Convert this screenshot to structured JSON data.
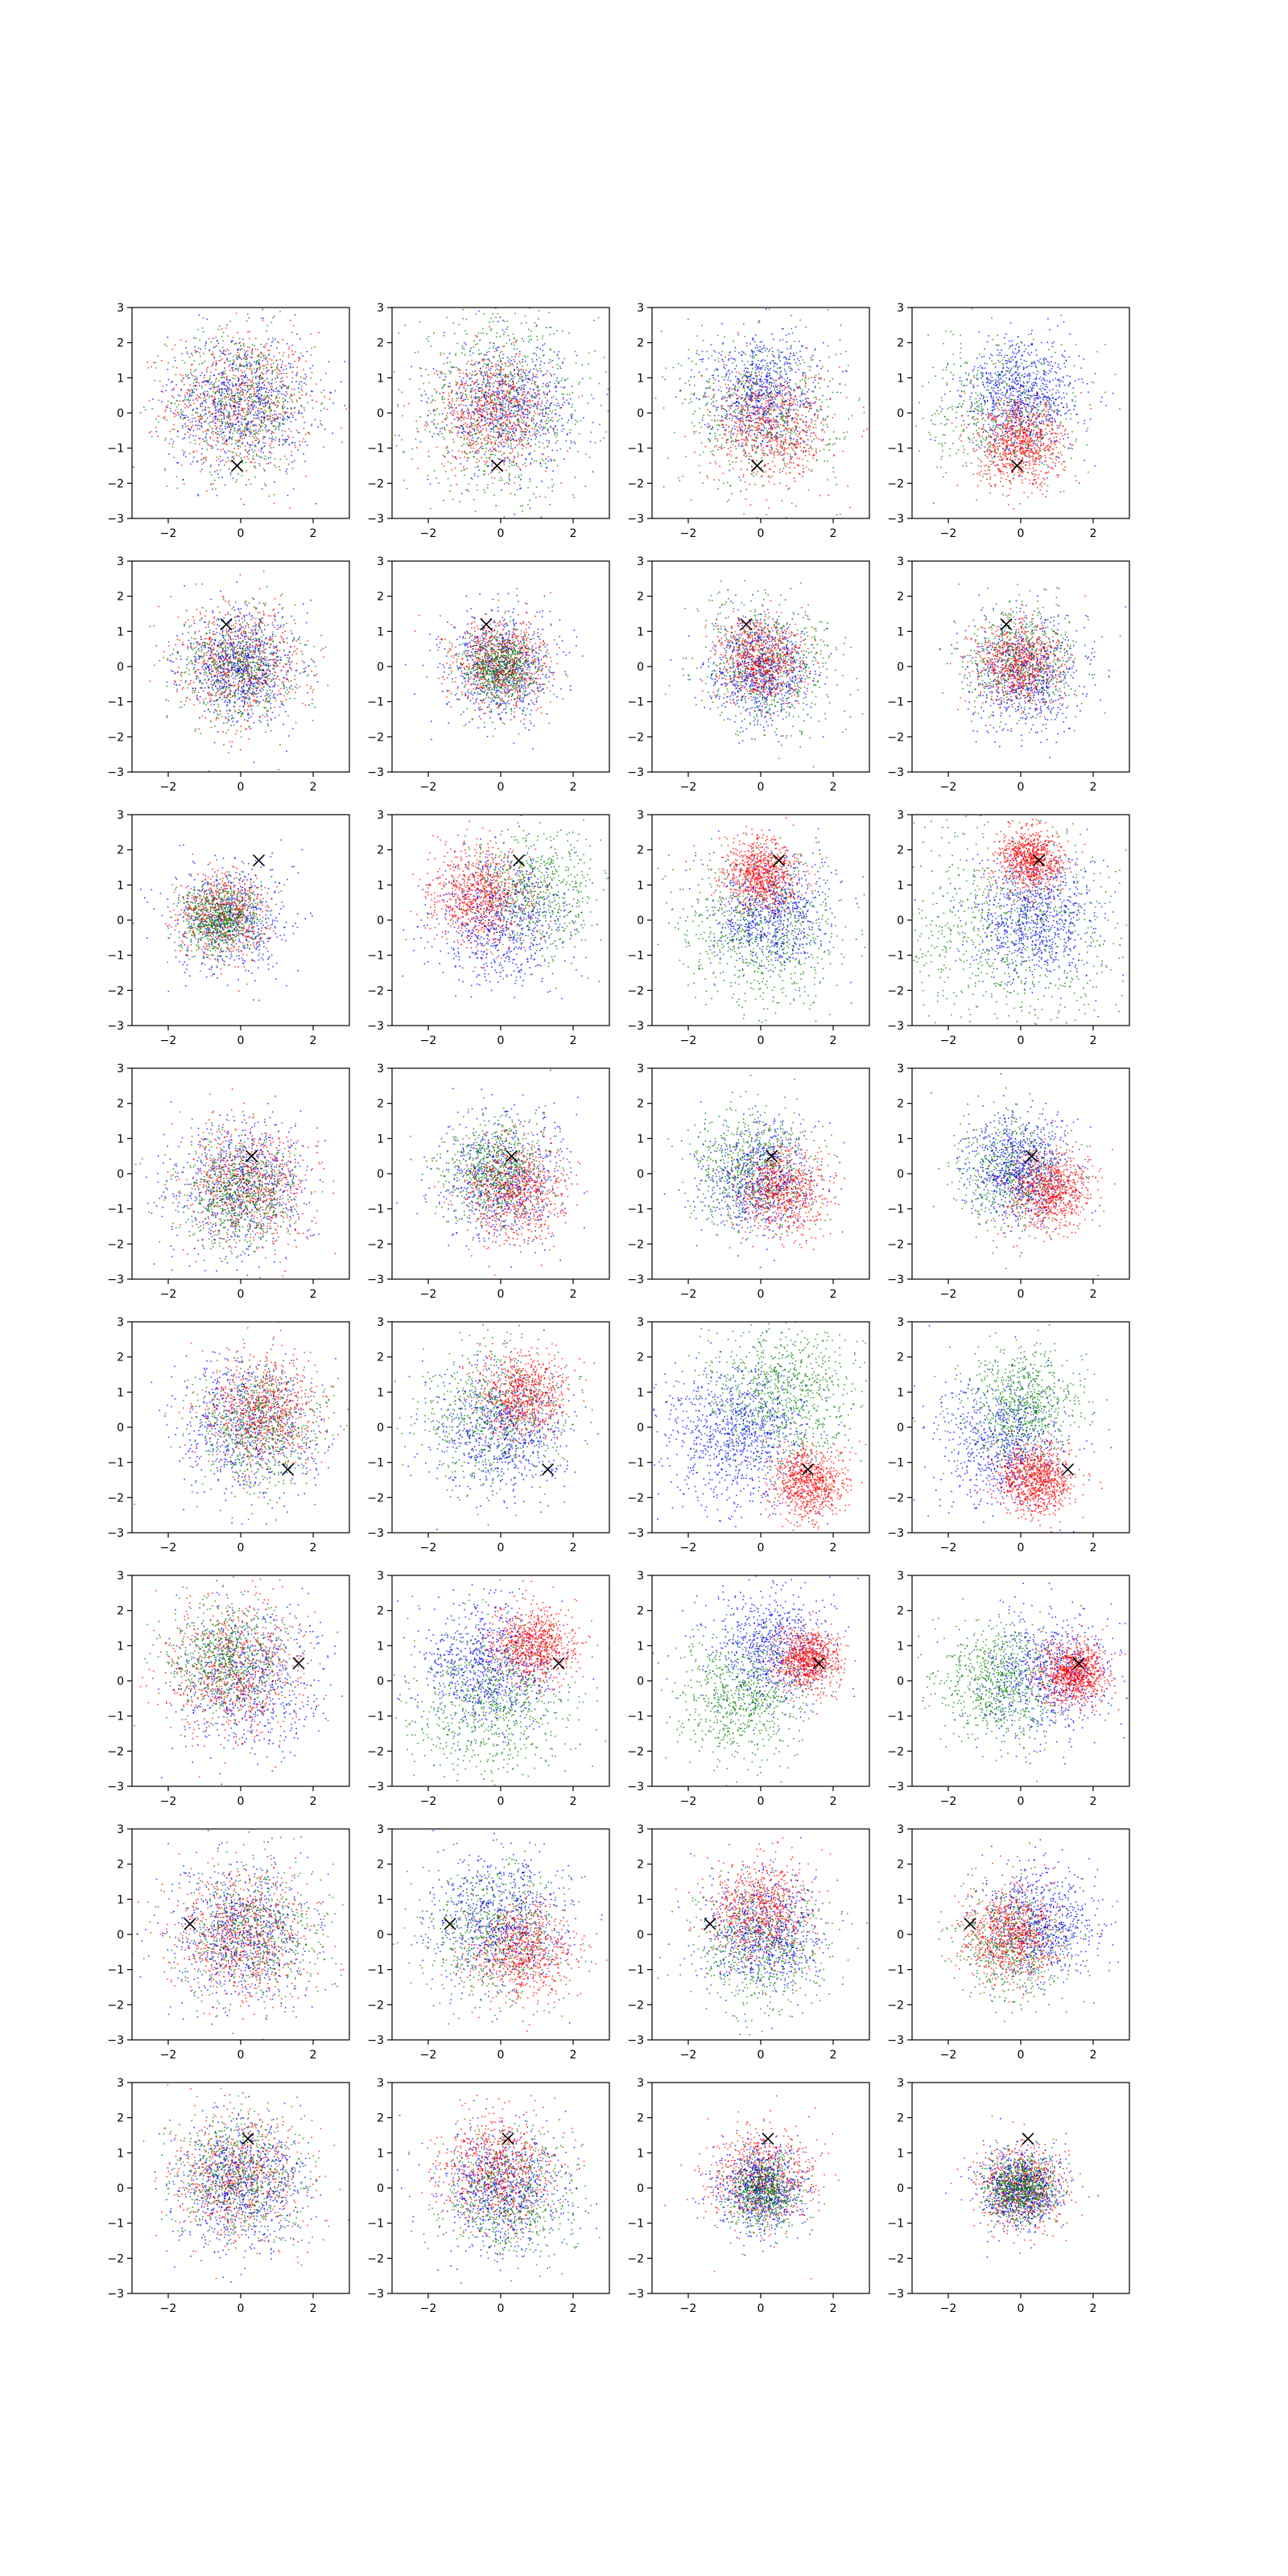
{
  "chart_data": {
    "type": "scatter",
    "layout": {
      "rows": 8,
      "cols": 4
    },
    "xlim": [
      -3,
      3
    ],
    "ylim": [
      -3,
      3
    ],
    "xticks": [
      -2,
      0,
      2
    ],
    "yticks": [
      -3,
      -2,
      -1,
      0,
      1,
      2,
      3
    ],
    "xtick_labels": [
      "−2",
      "0",
      "2"
    ],
    "ytick_labels": [
      "−3",
      "−2",
      "−1",
      "0",
      "1",
      "2",
      "3"
    ],
    "grid": false,
    "legend": "none",
    "colors": {
      "red": "#ff0000",
      "green": "#008000",
      "blue": "#0000ff",
      "marker": "#000000"
    },
    "marker_symbol": "x",
    "panels": [
      {
        "row": 0,
        "col": 0,
        "marker": [
          -0.1,
          -1.5
        ],
        "clusters": [
          {
            "color": "red",
            "cx": 0.0,
            "cy": 0.3,
            "sd": 1.0,
            "n": 700
          },
          {
            "color": "green",
            "cx": 0.0,
            "cy": 0.3,
            "sd": 1.0,
            "n": 700
          },
          {
            "color": "blue",
            "cx": 0.0,
            "cy": 0.3,
            "sd": 1.0,
            "n": 700
          }
        ]
      },
      {
        "row": 0,
        "col": 1,
        "marker": [
          -0.1,
          -1.5
        ],
        "clusters": [
          {
            "color": "green",
            "cx": 0.0,
            "cy": 0.2,
            "sd": 1.3,
            "n": 900
          },
          {
            "color": "blue",
            "cx": 0.2,
            "cy": 0.2,
            "sd": 0.9,
            "n": 700
          },
          {
            "color": "red",
            "cx": -0.2,
            "cy": 0.0,
            "sd": 0.8,
            "n": 700
          }
        ]
      },
      {
        "row": 0,
        "col": 2,
        "marker": [
          -0.1,
          -1.5
        ],
        "clusters": [
          {
            "color": "green",
            "cx": 0.0,
            "cy": 0.1,
            "sd": 1.1,
            "n": 700
          },
          {
            "color": "blue",
            "cx": 0.0,
            "cy": 0.6,
            "sd": 0.8,
            "n": 700
          },
          {
            "color": "red",
            "cx": 0.3,
            "cy": -0.4,
            "sd": 0.8,
            "n": 700
          }
        ]
      },
      {
        "row": 0,
        "col": 3,
        "marker": [
          -0.1,
          -1.5
        ],
        "clusters": [
          {
            "color": "green",
            "cx": -0.5,
            "cy": 0.0,
            "sd": 1.0,
            "n": 600
          },
          {
            "color": "blue",
            "cx": 0.1,
            "cy": 0.5,
            "sd": 0.8,
            "n": 800
          },
          {
            "color": "red",
            "cx": 0.0,
            "cy": -0.9,
            "sd": 0.6,
            "n": 800
          }
        ]
      },
      {
        "row": 1,
        "col": 0,
        "marker": [
          -0.4,
          1.2
        ],
        "clusters": [
          {
            "color": "red",
            "cx": 0.0,
            "cy": 0.1,
            "sd": 0.8,
            "n": 700
          },
          {
            "color": "green",
            "cx": 0.0,
            "cy": 0.0,
            "sd": 0.8,
            "n": 700
          },
          {
            "color": "blue",
            "cx": 0.0,
            "cy": 0.0,
            "sd": 0.8,
            "n": 700
          }
        ]
      },
      {
        "row": 1,
        "col": 1,
        "marker": [
          -0.4,
          1.2
        ],
        "clusters": [
          {
            "color": "blue",
            "cx": 0.0,
            "cy": 0.0,
            "sd": 0.75,
            "n": 700
          },
          {
            "color": "red",
            "cx": 0.0,
            "cy": 0.1,
            "sd": 0.65,
            "n": 700
          },
          {
            "color": "green",
            "cx": 0.0,
            "cy": -0.1,
            "sd": 0.55,
            "n": 700
          }
        ]
      },
      {
        "row": 1,
        "col": 2,
        "marker": [
          -0.4,
          1.2
        ],
        "clusters": [
          {
            "color": "green",
            "cx": 0.2,
            "cy": 0.0,
            "sd": 0.95,
            "n": 700
          },
          {
            "color": "blue",
            "cx": 0.0,
            "cy": -0.1,
            "sd": 0.7,
            "n": 700
          },
          {
            "color": "red",
            "cx": 0.0,
            "cy": 0.2,
            "sd": 0.6,
            "n": 700
          }
        ]
      },
      {
        "row": 1,
        "col": 3,
        "marker": [
          -0.4,
          1.2
        ],
        "clusters": [
          {
            "color": "blue",
            "cx": 0.2,
            "cy": -0.2,
            "sd": 0.8,
            "n": 700
          },
          {
            "color": "green",
            "cx": 0.0,
            "cy": 0.2,
            "sd": 0.8,
            "n": 600
          },
          {
            "color": "red",
            "cx": -0.1,
            "cy": 0.1,
            "sd": 0.6,
            "n": 700
          }
        ]
      },
      {
        "row": 2,
        "col": 0,
        "marker": [
          0.5,
          1.7
        ],
        "clusters": [
          {
            "color": "blue",
            "cx": -0.3,
            "cy": 0.0,
            "sd": 0.8,
            "n": 600
          },
          {
            "color": "red",
            "cx": -0.5,
            "cy": 0.1,
            "sd": 0.6,
            "n": 600
          },
          {
            "color": "green",
            "cx": -0.6,
            "cy": 0.0,
            "sd": 0.55,
            "n": 700
          }
        ]
      },
      {
        "row": 2,
        "col": 1,
        "marker": [
          0.5,
          1.7
        ],
        "clusters": [
          {
            "color": "green",
            "cx": 0.9,
            "cy": 0.8,
            "sd": 0.9,
            "n": 700
          },
          {
            "color": "blue",
            "cx": 0.0,
            "cy": 0.0,
            "sd": 0.9,
            "n": 700
          },
          {
            "color": "red",
            "cx": -0.6,
            "cy": 0.7,
            "sd": 0.7,
            "n": 800
          }
        ]
      },
      {
        "row": 2,
        "col": 2,
        "marker": [
          0.5,
          1.7
        ],
        "clusters": [
          {
            "color": "green",
            "cx": 0.0,
            "cy": -0.3,
            "sd": 1.1,
            "n": 800
          },
          {
            "color": "blue",
            "cx": 0.3,
            "cy": 0.2,
            "sd": 0.8,
            "n": 700
          },
          {
            "color": "red",
            "cx": 0.0,
            "cy": 1.3,
            "sd": 0.5,
            "n": 800
          }
        ]
      },
      {
        "row": 2,
        "col": 3,
        "marker": [
          0.5,
          1.7
        ],
        "clusters": [
          {
            "color": "green",
            "cx": -0.3,
            "cy": -0.3,
            "sd": 1.6,
            "n": 900
          },
          {
            "color": "blue",
            "cx": 0.4,
            "cy": 0.0,
            "sd": 0.85,
            "n": 800
          },
          {
            "color": "red",
            "cx": 0.3,
            "cy": 1.7,
            "sd": 0.45,
            "n": 800
          }
        ]
      },
      {
        "row": 3,
        "col": 0,
        "marker": [
          0.3,
          0.5
        ],
        "clusters": [
          {
            "color": "blue",
            "cx": 0.0,
            "cy": -0.3,
            "sd": 0.95,
            "n": 700
          },
          {
            "color": "red",
            "cx": 0.2,
            "cy": -0.3,
            "sd": 0.85,
            "n": 700
          },
          {
            "color": "green",
            "cx": 0.0,
            "cy": -0.5,
            "sd": 0.8,
            "n": 700
          }
        ]
      },
      {
        "row": 3,
        "col": 1,
        "marker": [
          0.3,
          0.5
        ],
        "clusters": [
          {
            "color": "blue",
            "cx": 0.0,
            "cy": -0.2,
            "sd": 0.9,
            "n": 700
          },
          {
            "color": "green",
            "cx": -0.1,
            "cy": 0.1,
            "sd": 0.7,
            "n": 700
          },
          {
            "color": "red",
            "cx": 0.4,
            "cy": -0.5,
            "sd": 0.7,
            "n": 700
          }
        ]
      },
      {
        "row": 3,
        "col": 2,
        "marker": [
          0.3,
          0.5
        ],
        "clusters": [
          {
            "color": "green",
            "cx": -0.2,
            "cy": 0.2,
            "sd": 0.8,
            "n": 700
          },
          {
            "color": "blue",
            "cx": 0.0,
            "cy": -0.1,
            "sd": 0.8,
            "n": 700
          },
          {
            "color": "red",
            "cx": 0.6,
            "cy": -0.5,
            "sd": 0.6,
            "n": 700
          }
        ]
      },
      {
        "row": 3,
        "col": 3,
        "marker": [
          0.3,
          0.5
        ],
        "clusters": [
          {
            "color": "green",
            "cx": -0.3,
            "cy": 0.0,
            "sd": 0.8,
            "n": 600
          },
          {
            "color": "blue",
            "cx": 0.0,
            "cy": 0.1,
            "sd": 0.7,
            "n": 800
          },
          {
            "color": "red",
            "cx": 0.8,
            "cy": -0.5,
            "sd": 0.55,
            "n": 800
          }
        ]
      },
      {
        "row": 4,
        "col": 0,
        "marker": [
          1.3,
          -1.2
        ],
        "clusters": [
          {
            "color": "blue",
            "cx": 0.2,
            "cy": 0.0,
            "sd": 1.0,
            "n": 700
          },
          {
            "color": "green",
            "cx": 0.5,
            "cy": 0.0,
            "sd": 0.9,
            "n": 700
          },
          {
            "color": "red",
            "cx": 0.6,
            "cy": 0.4,
            "sd": 0.8,
            "n": 700
          }
        ]
      },
      {
        "row": 4,
        "col": 1,
        "marker": [
          1.3,
          -1.2
        ],
        "clusters": [
          {
            "color": "green",
            "cx": -0.2,
            "cy": 0.3,
            "sd": 1.0,
            "n": 700
          },
          {
            "color": "blue",
            "cx": 0.0,
            "cy": -0.1,
            "sd": 0.9,
            "n": 700
          },
          {
            "color": "red",
            "cx": 0.6,
            "cy": 0.9,
            "sd": 0.6,
            "n": 700
          }
        ]
      },
      {
        "row": 4,
        "col": 2,
        "marker": [
          1.3,
          -1.2
        ],
        "clusters": [
          {
            "color": "green",
            "cx": 0.6,
            "cy": 0.9,
            "sd": 1.0,
            "n": 900
          },
          {
            "color": "blue",
            "cx": -0.7,
            "cy": -0.3,
            "sd": 1.0,
            "n": 900
          },
          {
            "color": "red",
            "cx": 1.3,
            "cy": -1.6,
            "sd": 0.5,
            "n": 800
          }
        ]
      },
      {
        "row": 4,
        "col": 3,
        "marker": [
          1.3,
          -1.2
        ],
        "clusters": [
          {
            "color": "green",
            "cx": 0.1,
            "cy": 0.6,
            "sd": 0.8,
            "n": 800
          },
          {
            "color": "blue",
            "cx": -0.6,
            "cy": -0.5,
            "sd": 0.9,
            "n": 700
          },
          {
            "color": "red",
            "cx": 0.4,
            "cy": -1.5,
            "sd": 0.5,
            "n": 900
          }
        ]
      },
      {
        "row": 5,
        "col": 0,
        "marker": [
          1.6,
          0.5
        ],
        "clusters": [
          {
            "color": "blue",
            "cx": 0.2,
            "cy": 0.0,
            "sd": 1.0,
            "n": 700
          },
          {
            "color": "red",
            "cx": -0.2,
            "cy": 0.3,
            "sd": 0.95,
            "n": 700
          },
          {
            "color": "green",
            "cx": -0.4,
            "cy": 0.6,
            "sd": 0.8,
            "n": 700
          }
        ]
      },
      {
        "row": 5,
        "col": 1,
        "marker": [
          1.6,
          0.5
        ],
        "clusters": [
          {
            "color": "green",
            "cx": -0.3,
            "cy": -0.6,
            "sd": 1.1,
            "n": 800
          },
          {
            "color": "blue",
            "cx": -0.3,
            "cy": 0.4,
            "sd": 0.9,
            "n": 800
          },
          {
            "color": "red",
            "cx": 0.9,
            "cy": 1.0,
            "sd": 0.55,
            "n": 800
          }
        ]
      },
      {
        "row": 5,
        "col": 2,
        "marker": [
          1.6,
          0.5
        ],
        "clusters": [
          {
            "color": "green",
            "cx": -0.5,
            "cy": -0.4,
            "sd": 0.9,
            "n": 800
          },
          {
            "color": "blue",
            "cx": 0.3,
            "cy": 1.0,
            "sd": 0.8,
            "n": 700
          },
          {
            "color": "red",
            "cx": 1.3,
            "cy": 0.6,
            "sd": 0.45,
            "n": 800
          }
        ]
      },
      {
        "row": 5,
        "col": 3,
        "marker": [
          1.6,
          0.5
        ],
        "clusters": [
          {
            "color": "green",
            "cx": -0.6,
            "cy": 0.0,
            "sd": 0.85,
            "n": 800
          },
          {
            "color": "blue",
            "cx": 0.8,
            "cy": 0.2,
            "sd": 0.9,
            "n": 700
          },
          {
            "color": "red",
            "cx": 1.5,
            "cy": 0.2,
            "sd": 0.45,
            "n": 900
          }
        ]
      },
      {
        "row": 6,
        "col": 0,
        "marker": [
          -1.4,
          0.3
        ],
        "clusters": [
          {
            "color": "green",
            "cx": 0.3,
            "cy": 0.1,
            "sd": 1.0,
            "n": 700
          },
          {
            "color": "blue",
            "cx": 0.0,
            "cy": 0.0,
            "sd": 1.0,
            "n": 700
          },
          {
            "color": "red",
            "cx": 0.0,
            "cy": 0.0,
            "sd": 0.95,
            "n": 700
          }
        ]
      },
      {
        "row": 6,
        "col": 1,
        "marker": [
          -1.4,
          0.3
        ],
        "clusters": [
          {
            "color": "green",
            "cx": -0.2,
            "cy": 0.1,
            "sd": 1.0,
            "n": 700
          },
          {
            "color": "blue",
            "cx": 0.0,
            "cy": 0.4,
            "sd": 0.9,
            "n": 700
          },
          {
            "color": "red",
            "cx": 0.6,
            "cy": -0.5,
            "sd": 0.7,
            "n": 700
          }
        ]
      },
      {
        "row": 6,
        "col": 2,
        "marker": [
          -1.4,
          0.3
        ],
        "clusters": [
          {
            "color": "green",
            "cx": 0.0,
            "cy": -0.3,
            "sd": 0.9,
            "n": 700
          },
          {
            "color": "blue",
            "cx": 0.1,
            "cy": 0.0,
            "sd": 0.8,
            "n": 700
          },
          {
            "color": "red",
            "cx": 0.0,
            "cy": 0.7,
            "sd": 0.7,
            "n": 700
          }
        ]
      },
      {
        "row": 6,
        "col": 3,
        "marker": [
          -1.4,
          0.3
        ],
        "clusters": [
          {
            "color": "green",
            "cx": -0.2,
            "cy": -0.3,
            "sd": 0.8,
            "n": 600
          },
          {
            "color": "blue",
            "cx": 0.5,
            "cy": 0.3,
            "sd": 0.8,
            "n": 700
          },
          {
            "color": "red",
            "cx": -0.3,
            "cy": 0.0,
            "sd": 0.65,
            "n": 800
          }
        ]
      },
      {
        "row": 7,
        "col": 0,
        "marker": [
          0.2,
          1.4
        ],
        "clusters": [
          {
            "color": "red",
            "cx": 0.0,
            "cy": 0.2,
            "sd": 0.9,
            "n": 700
          },
          {
            "color": "green",
            "cx": 0.0,
            "cy": 0.4,
            "sd": 0.9,
            "n": 700
          },
          {
            "color": "blue",
            "cx": 0.0,
            "cy": 0.1,
            "sd": 0.9,
            "n": 700
          }
        ]
      },
      {
        "row": 7,
        "col": 1,
        "marker": [
          0.2,
          1.4
        ],
        "clusters": [
          {
            "color": "green",
            "cx": 0.2,
            "cy": -0.2,
            "sd": 0.9,
            "n": 700
          },
          {
            "color": "blue",
            "cx": 0.0,
            "cy": 0.0,
            "sd": 0.85,
            "n": 700
          },
          {
            "color": "red",
            "cx": -0.1,
            "cy": 0.5,
            "sd": 0.8,
            "n": 700
          }
        ]
      },
      {
        "row": 7,
        "col": 2,
        "marker": [
          0.2,
          1.4
        ],
        "clusters": [
          {
            "color": "red",
            "cx": 0.0,
            "cy": 0.3,
            "sd": 0.7,
            "n": 700
          },
          {
            "color": "blue",
            "cx": 0.0,
            "cy": 0.0,
            "sd": 0.6,
            "n": 700
          },
          {
            "color": "green",
            "cx": 0.1,
            "cy": -0.1,
            "sd": 0.5,
            "n": 600
          }
        ]
      },
      {
        "row": 7,
        "col": 3,
        "marker": [
          0.2,
          1.4
        ],
        "clusters": [
          {
            "color": "red",
            "cx": 0.0,
            "cy": 0.0,
            "sd": 0.6,
            "n": 700
          },
          {
            "color": "blue",
            "cx": 0.0,
            "cy": 0.0,
            "sd": 0.55,
            "n": 700
          },
          {
            "color": "green",
            "cx": 0.0,
            "cy": 0.0,
            "sd": 0.5,
            "n": 700
          }
        ]
      }
    ]
  }
}
